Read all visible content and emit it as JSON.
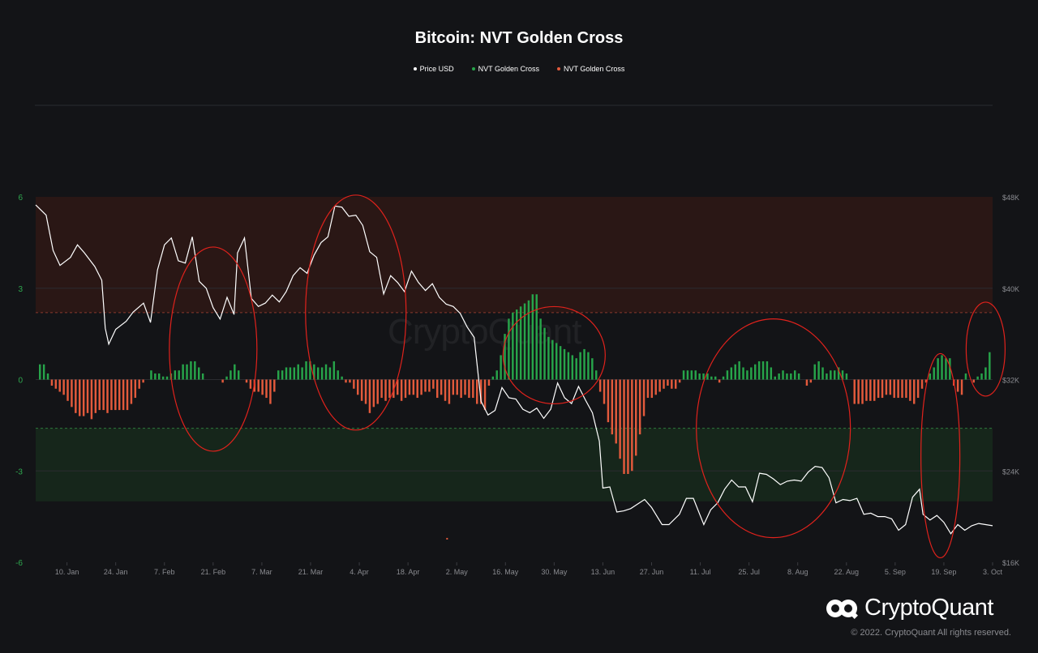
{
  "title": "Bitcoin: NVT Golden Cross",
  "legend": [
    {
      "label": "Price USD",
      "color": "#ffffff"
    },
    {
      "label": "NVT Golden Cross",
      "color": "#27a44a"
    },
    {
      "label": "NVT Golden Cross",
      "color": "#e35a3c"
    }
  ],
  "logo_text": "CryptoQuant",
  "copyright": "© 2022. CryptoQuant All rights reserved.",
  "chart_data": {
    "type": "line",
    "x_ticks": [
      "10. Jan",
      "24. Jan",
      "7. Feb",
      "21. Feb",
      "7. Mar",
      "21. Mar",
      "4. Apr",
      "18. Apr",
      "2. May",
      "16. May",
      "30. May",
      "13. Jun",
      "27. Jun",
      "11. Jul",
      "25. Jul",
      "8. Aug",
      "22. Aug",
      "5. Sep",
      "19. Sep",
      "3. Oct"
    ],
    "left_axis": {
      "ticks": [
        "6",
        "3",
        "0",
        "-3",
        "-6"
      ],
      "range": [
        -6,
        6
      ]
    },
    "right_axis": {
      "ticks": [
        "$48K",
        "$40K",
        "$32K",
        "$24K",
        "$16K"
      ],
      "range": [
        16000,
        48000
      ]
    },
    "bands": {
      "upper_threshold": 2.2,
      "lower_threshold": -1.6,
      "upper_band_color": "#2a1715",
      "lower_band_color": "#16261b"
    },
    "series": [
      {
        "name": "Price USD",
        "color": "#ffffff",
        "points": [
          [
            "2022-01-01",
            47300
          ],
          [
            "2022-01-04",
            46400
          ],
          [
            "2022-01-06",
            43300
          ],
          [
            "2022-01-08",
            42000
          ],
          [
            "2022-01-11",
            42700
          ],
          [
            "2022-01-13",
            43800
          ],
          [
            "2022-01-15",
            43100
          ],
          [
            "2022-01-18",
            41900
          ],
          [
            "2022-01-20",
            40700
          ],
          [
            "2022-01-21",
            36500
          ],
          [
            "2022-01-22",
            35100
          ],
          [
            "2022-01-24",
            36400
          ],
          [
            "2022-01-27",
            37100
          ],
          [
            "2022-01-29",
            37900
          ],
          [
            "2022-02-01",
            38700
          ],
          [
            "2022-02-03",
            37000
          ],
          [
            "2022-02-05",
            41600
          ],
          [
            "2022-02-07",
            43800
          ],
          [
            "2022-02-09",
            44400
          ],
          [
            "2022-02-11",
            42400
          ],
          [
            "2022-02-13",
            42200
          ],
          [
            "2022-02-15",
            44500
          ],
          [
            "2022-02-17",
            40600
          ],
          [
            "2022-02-19",
            40000
          ],
          [
            "2022-02-21",
            38300
          ],
          [
            "2022-02-23",
            37300
          ],
          [
            "2022-02-25",
            39200
          ],
          [
            "2022-02-27",
            37700
          ],
          [
            "2022-02-28",
            43100
          ],
          [
            "2022-03-02",
            44400
          ],
          [
            "2022-03-04",
            39100
          ],
          [
            "2022-03-06",
            38400
          ],
          [
            "2022-03-08",
            38700
          ],
          [
            "2022-03-10",
            39400
          ],
          [
            "2022-03-12",
            38800
          ],
          [
            "2022-03-14",
            39700
          ],
          [
            "2022-03-16",
            41100
          ],
          [
            "2022-03-18",
            41800
          ],
          [
            "2022-03-20",
            41300
          ],
          [
            "2022-03-22",
            42900
          ],
          [
            "2022-03-24",
            44000
          ],
          [
            "2022-03-26",
            44500
          ],
          [
            "2022-03-28",
            47200
          ],
          [
            "2022-03-30",
            47100
          ],
          [
            "2022-04-01",
            46300
          ],
          [
            "2022-04-03",
            46400
          ],
          [
            "2022-04-05",
            45500
          ],
          [
            "2022-04-07",
            43200
          ],
          [
            "2022-04-09",
            42700
          ],
          [
            "2022-04-11",
            39500
          ],
          [
            "2022-04-13",
            41100
          ],
          [
            "2022-04-15",
            40500
          ],
          [
            "2022-04-17",
            39700
          ],
          [
            "2022-04-19",
            41500
          ],
          [
            "2022-04-21",
            40500
          ],
          [
            "2022-04-23",
            39800
          ],
          [
            "2022-04-25",
            40400
          ],
          [
            "2022-04-27",
            39200
          ],
          [
            "2022-04-29",
            38600
          ],
          [
            "2022-05-01",
            38400
          ],
          [
            "2022-05-03",
            37800
          ],
          [
            "2022-05-05",
            36600
          ],
          [
            "2022-05-07",
            35700
          ],
          [
            "2022-05-09",
            30100
          ],
          [
            "2022-05-11",
            28900
          ],
          [
            "2022-05-13",
            29300
          ],
          [
            "2022-05-15",
            31300
          ],
          [
            "2022-05-17",
            30400
          ],
          [
            "2022-05-19",
            30300
          ],
          [
            "2022-05-21",
            29400
          ],
          [
            "2022-05-23",
            29100
          ],
          [
            "2022-05-25",
            29500
          ],
          [
            "2022-05-27",
            28600
          ],
          [
            "2022-05-29",
            29400
          ],
          [
            "2022-05-31",
            31700
          ],
          [
            "2022-06-02",
            30400
          ],
          [
            "2022-06-04",
            29900
          ],
          [
            "2022-06-06",
            31400
          ],
          [
            "2022-06-08",
            30200
          ],
          [
            "2022-06-10",
            29100
          ],
          [
            "2022-06-12",
            26600
          ],
          [
            "2022-06-13",
            22500
          ],
          [
            "2022-06-15",
            22600
          ],
          [
            "2022-06-17",
            20400
          ],
          [
            "2022-06-19",
            20500
          ],
          [
            "2022-06-21",
            20700
          ],
          [
            "2022-06-23",
            21100
          ],
          [
            "2022-06-25",
            21500
          ],
          [
            "2022-06-27",
            20800
          ],
          [
            "2022-06-30",
            19300
          ],
          [
            "2022-07-02",
            19300
          ],
          [
            "2022-07-05",
            20200
          ],
          [
            "2022-07-07",
            21600
          ],
          [
            "2022-07-09",
            21600
          ],
          [
            "2022-07-12",
            19300
          ],
          [
            "2022-07-14",
            20600
          ],
          [
            "2022-07-16",
            21200
          ],
          [
            "2022-07-18",
            22400
          ],
          [
            "2022-07-20",
            23200
          ],
          [
            "2022-07-22",
            22600
          ],
          [
            "2022-07-24",
            22600
          ],
          [
            "2022-07-26",
            21300
          ],
          [
            "2022-07-28",
            23800
          ],
          [
            "2022-07-30",
            23700
          ],
          [
            "2022-08-01",
            23300
          ],
          [
            "2022-08-03",
            22800
          ],
          [
            "2022-08-05",
            23100
          ],
          [
            "2022-08-07",
            23200
          ],
          [
            "2022-08-09",
            23100
          ],
          [
            "2022-08-11",
            23900
          ],
          [
            "2022-08-13",
            24400
          ],
          [
            "2022-08-15",
            24300
          ],
          [
            "2022-08-17",
            23400
          ],
          [
            "2022-08-19",
            21200
          ],
          [
            "2022-08-21",
            21500
          ],
          [
            "2022-08-23",
            21400
          ],
          [
            "2022-08-25",
            21600
          ],
          [
            "2022-08-27",
            20200
          ],
          [
            "2022-08-29",
            20300
          ],
          [
            "2022-08-31",
            20000
          ],
          [
            "2022-09-02",
            20000
          ],
          [
            "2022-09-04",
            19800
          ],
          [
            "2022-09-06",
            18800
          ],
          [
            "2022-09-08",
            19300
          ],
          [
            "2022-09-10",
            21700
          ],
          [
            "2022-09-12",
            22400
          ],
          [
            "2022-09-13",
            20200
          ],
          [
            "2022-09-15",
            19700
          ],
          [
            "2022-09-17",
            20100
          ],
          [
            "2022-09-19",
            19500
          ],
          [
            "2022-09-21",
            18500
          ],
          [
            "2022-09-23",
            19300
          ],
          [
            "2022-09-25",
            18800
          ],
          [
            "2022-09-27",
            19200
          ],
          [
            "2022-09-29",
            19400
          ],
          [
            "2022-10-01",
            19300
          ],
          [
            "2022-10-03",
            19200
          ]
        ]
      },
      {
        "name": "NVT Golden Cross",
        "color": "#27a44a",
        "sign": "positive",
        "points": []
      },
      {
        "name": "NVT Golden Cross",
        "color": "#e35a3c",
        "sign": "negative",
        "points": []
      }
    ],
    "golden_cross_values": [
      0.5,
      0.5,
      0.2,
      -0.2,
      -0.3,
      -0.4,
      -0.5,
      -0.7,
      -0.9,
      -1.1,
      -1.2,
      -1.2,
      -1.1,
      -1.3,
      -1.1,
      -1.0,
      -1.0,
      -1.1,
      -1.0,
      -1.0,
      -1.0,
      -1.0,
      -1.0,
      -0.8,
      -0.6,
      -0.3,
      -0.1,
      0.0,
      0.3,
      0.2,
      0.2,
      0.1,
      0.1,
      0.2,
      0.3,
      0.3,
      0.5,
      0.5,
      0.6,
      0.6,
      0.4,
      0.2,
      0.0,
      0.0,
      0.0,
      0.0,
      -0.1,
      0.1,
      0.3,
      0.5,
      0.3,
      0.0,
      -0.1,
      -0.3,
      -0.4,
      -0.4,
      -0.5,
      -0.6,
      -0.8,
      -0.4,
      0.3,
      0.3,
      0.4,
      0.4,
      0.4,
      0.5,
      0.4,
      0.6,
      0.6,
      0.5,
      0.4,
      0.4,
      0.5,
      0.4,
      0.6,
      0.3,
      0.1,
      -0.1,
      -0.1,
      -0.3,
      -0.5,
      -0.7,
      -0.8,
      -1.1,
      -0.9,
      -0.8,
      -0.6,
      -0.7,
      -0.6,
      -0.6,
      -0.5,
      -0.7,
      -0.6,
      -0.5,
      -0.5,
      -0.6,
      -0.5,
      -0.4,
      -0.4,
      -0.3,
      -0.6,
      -0.5,
      -0.7,
      -0.8,
      -0.5,
      -0.5,
      -0.6,
      -0.5,
      -0.6,
      -0.6,
      -0.8,
      -0.8,
      -1.0,
      -0.2,
      0.1,
      0.3,
      0.8,
      1.5,
      2.0,
      2.2,
      2.3,
      2.4,
      2.5,
      2.6,
      2.8,
      2.8,
      2.0,
      1.7,
      1.4,
      1.3,
      1.2,
      1.1,
      1.0,
      0.9,
      0.8,
      0.7,
      0.9,
      1.0,
      0.9,
      0.7,
      0.3,
      -0.4,
      -0.8,
      -1.4,
      -1.8,
      -2.1,
      -2.6,
      -3.1,
      -3.1,
      -3.0,
      -2.5,
      -1.8,
      -1.2,
      -0.6,
      -0.6,
      -0.5,
      -0.4,
      -0.3,
      -0.2,
      -0.3,
      -0.3,
      -0.1,
      0.3,
      0.3,
      0.3,
      0.3,
      0.2,
      0.2,
      0.2,
      0.1,
      0.1,
      -0.1,
      0.1,
      0.3,
      0.4,
      0.5,
      0.6,
      0.4,
      0.3,
      0.4,
      0.5,
      0.6,
      0.6,
      0.6,
      0.4,
      0.1,
      0.2,
      0.3,
      0.2,
      0.2,
      0.3,
      0.2,
      0.0,
      -0.2,
      -0.1,
      0.5,
      0.6,
      0.4,
      0.2,
      0.3,
      0.3,
      0.4,
      0.3,
      0.2,
      0.0,
      -0.8,
      -0.8,
      -0.8,
      -0.7,
      -0.7,
      -0.7,
      -0.6,
      -0.6,
      -0.5,
      -0.5,
      -0.6,
      -0.6,
      -0.6,
      -0.6,
      -0.7,
      -0.8,
      -0.6,
      -0.3,
      -0.1,
      0.2,
      0.4,
      0.7,
      0.8,
      0.7,
      0.7,
      -0.2,
      -0.4,
      -0.5,
      0.2,
      0.0,
      -0.1,
      0.1,
      0.2,
      0.4,
      0.9
    ]
  }
}
